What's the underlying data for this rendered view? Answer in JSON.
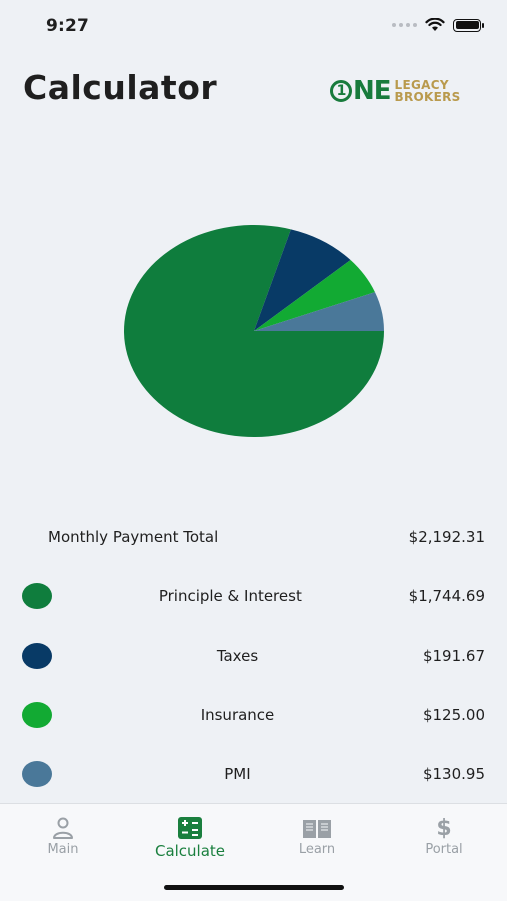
{
  "status_bar": {
    "time": "9:27"
  },
  "header": {
    "title": "Calculator",
    "logo": {
      "one": "ONE",
      "word1": "LEGACY",
      "word2": "BROKERS"
    }
  },
  "chart_data": {
    "type": "pie",
    "slices": [
      {
        "label": "Principle & Interest",
        "value": 1744.69,
        "color": "#0f7d3d"
      },
      {
        "label": "Taxes",
        "value": 191.67,
        "color": "#083a66"
      },
      {
        "label": "Insurance",
        "value": 125.0,
        "color": "#12aa33"
      },
      {
        "label": "PMI",
        "value": 130.95,
        "color": "#4a7899"
      }
    ]
  },
  "summary": {
    "label": "Monthly Payment Total",
    "value": "$2,192.31"
  },
  "legend": [
    {
      "label": "Principle & Interest",
      "value": "$1,744.69",
      "color": "#0f7d3d"
    },
    {
      "label": "Taxes",
      "value": "$191.67",
      "color": "#083a66"
    },
    {
      "label": "Insurance",
      "value": "$125.00",
      "color": "#12aa33"
    },
    {
      "label": "PMI",
      "value": "$130.95",
      "color": "#4a7899"
    }
  ],
  "tabs": [
    {
      "label": "Main",
      "icon": "person-icon"
    },
    {
      "label": "Calculate",
      "icon": "calculator-icon",
      "active": true
    },
    {
      "label": "Learn",
      "icon": "book-icon"
    },
    {
      "label": "Portal",
      "icon": "dollar-icon"
    }
  ]
}
